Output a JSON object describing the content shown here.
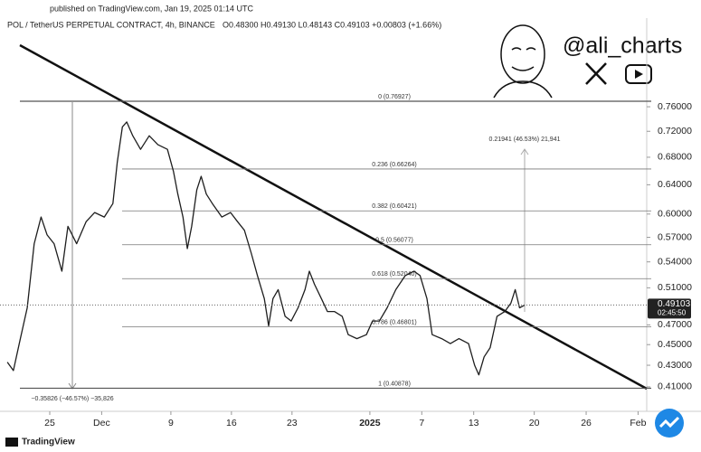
{
  "published": "published on TradingView.com, Jan 19, 2025 01:14 UTC",
  "watermark": "@ali_charts",
  "footer": "TradingView",
  "chart_data": {
    "type": "line",
    "symbol": "POL / TetherUS PERPETUAL CONTRACT, 4h, BINANCE",
    "ohlc": "O0.48300 H0.49130 L0.48143 C0.49103 +0.00803 (+1.66%)",
    "ylog": true,
    "ylim": [
      0.3885,
      0.924
    ],
    "yticks": [
      {
        "value": 0.76,
        "label": "0.76000"
      },
      {
        "value": 0.72,
        "label": "0.72000"
      },
      {
        "value": 0.68,
        "label": "0.68000"
      },
      {
        "value": 0.64,
        "label": "0.64000"
      },
      {
        "value": 0.6,
        "label": "0.60000"
      },
      {
        "value": 0.57,
        "label": "0.57000"
      },
      {
        "value": 0.54,
        "label": "0.54000"
      },
      {
        "value": 0.51,
        "label": "0.51000"
      },
      {
        "value": 0.47,
        "label": "0.47000"
      },
      {
        "value": 0.45,
        "label": "0.45000"
      },
      {
        "value": 0.43,
        "label": "0.43000"
      },
      {
        "value": 0.41,
        "label": "0.41000"
      }
    ],
    "xlim": [
      19.25,
      94
    ],
    "xticks": [
      25,
      {
        "value": 31,
        "label": "Dec"
      },
      {
        "value": 39,
        "label": "9"
      },
      {
        "value": 46,
        "label": "16"
      },
      {
        "value": 53,
        "label": "23"
      },
      {
        "value": 62,
        "label": "2025"
      },
      {
        "value": 68,
        "label": "7"
      },
      {
        "value": 74,
        "label": "13"
      },
      {
        "value": 81,
        "label": "20"
      },
      {
        "value": 87,
        "label": "26"
      },
      {
        "value": 93,
        "label": "Feb"
      }
    ],
    "x": [
      20.1,
      20.8,
      21.6,
      22.4,
      23.2,
      24.0,
      24.7,
      25.5,
      26.4,
      27.1,
      28.1,
      29.2,
      30.2,
      31.3,
      32.3,
      32.8,
      33.4,
      33.9,
      34.6,
      35.5,
      36.5,
      37.5,
      38.6,
      39.3,
      39.8,
      40.4,
      40.9,
      41.4,
      42.0,
      42.5,
      43.1,
      43.8,
      44.9,
      45.9,
      46.7,
      47.5,
      48.3,
      49.0,
      49.8,
      50.3,
      50.8,
      51.4,
      52.2,
      52.9,
      53.7,
      54.5,
      55.0,
      55.6,
      56.4,
      57.1,
      57.9,
      58.8,
      59.5,
      60.5,
      61.6,
      62.3,
      63.1,
      64.0,
      65.0,
      66.1,
      67.1,
      67.8,
      68.6,
      69.2,
      70.3,
      71.3,
      72.3,
      73.4,
      74.1,
      74.6,
      75.2,
      75.9,
      76.7,
      77.6,
      78.3,
      78.8,
      79.3,
      79.9
    ],
    "series": [
      {
        "name": "POL / TetherUS",
        "color": "#1e1e1e",
        "values": [
          0.433,
          0.425,
          0.456,
          0.488,
          0.562,
          0.596,
          0.573,
          0.562,
          0.529,
          0.584,
          0.562,
          0.59,
          0.602,
          0.596,
          0.614,
          0.672,
          0.727,
          0.735,
          0.713,
          0.692,
          0.713,
          0.699,
          0.692,
          0.659,
          0.627,
          0.596,
          0.556,
          0.584,
          0.633,
          0.652,
          0.627,
          0.614,
          0.596,
          0.602,
          0.59,
          0.579,
          0.55,
          0.524,
          0.498,
          0.469,
          0.498,
          0.508,
          0.479,
          0.474,
          0.488,
          0.508,
          0.529,
          0.514,
          0.498,
          0.484,
          0.484,
          0.479,
          0.46,
          0.456,
          0.46,
          0.474,
          0.474,
          0.488,
          0.508,
          0.524,
          0.529,
          0.524,
          0.498,
          0.46,
          0.456,
          0.451,
          0.456,
          0.451,
          0.43,
          0.421,
          0.438,
          0.447,
          0.479,
          0.484,
          0.493,
          0.508,
          0.488,
          0.491
        ]
      }
    ],
    "fib_levels": [
      {
        "value": 0.76927,
        "label": "0 (0.76927)"
      },
      {
        "value": 0.66264,
        "label": "0.236 (0.66264)"
      },
      {
        "value": 0.60421,
        "label": "0.382 (0.60421)"
      },
      {
        "value": 0.56077,
        "label": "0.5 (0.56077)"
      },
      {
        "value": 0.5204,
        "label": "0.618 (0.52040)"
      },
      {
        "value": 0.46801,
        "label": "0.786 (0.46801)"
      },
      {
        "value": 0.40878,
        "label": "1 (0.40878)"
      }
    ],
    "measure_down": "−0.35826 (−46.57%) −35,826",
    "measure_up": "0.21941 (46.53%) 21,941",
    "last_price": 0.49103,
    "countdown": "02:45:50"
  }
}
